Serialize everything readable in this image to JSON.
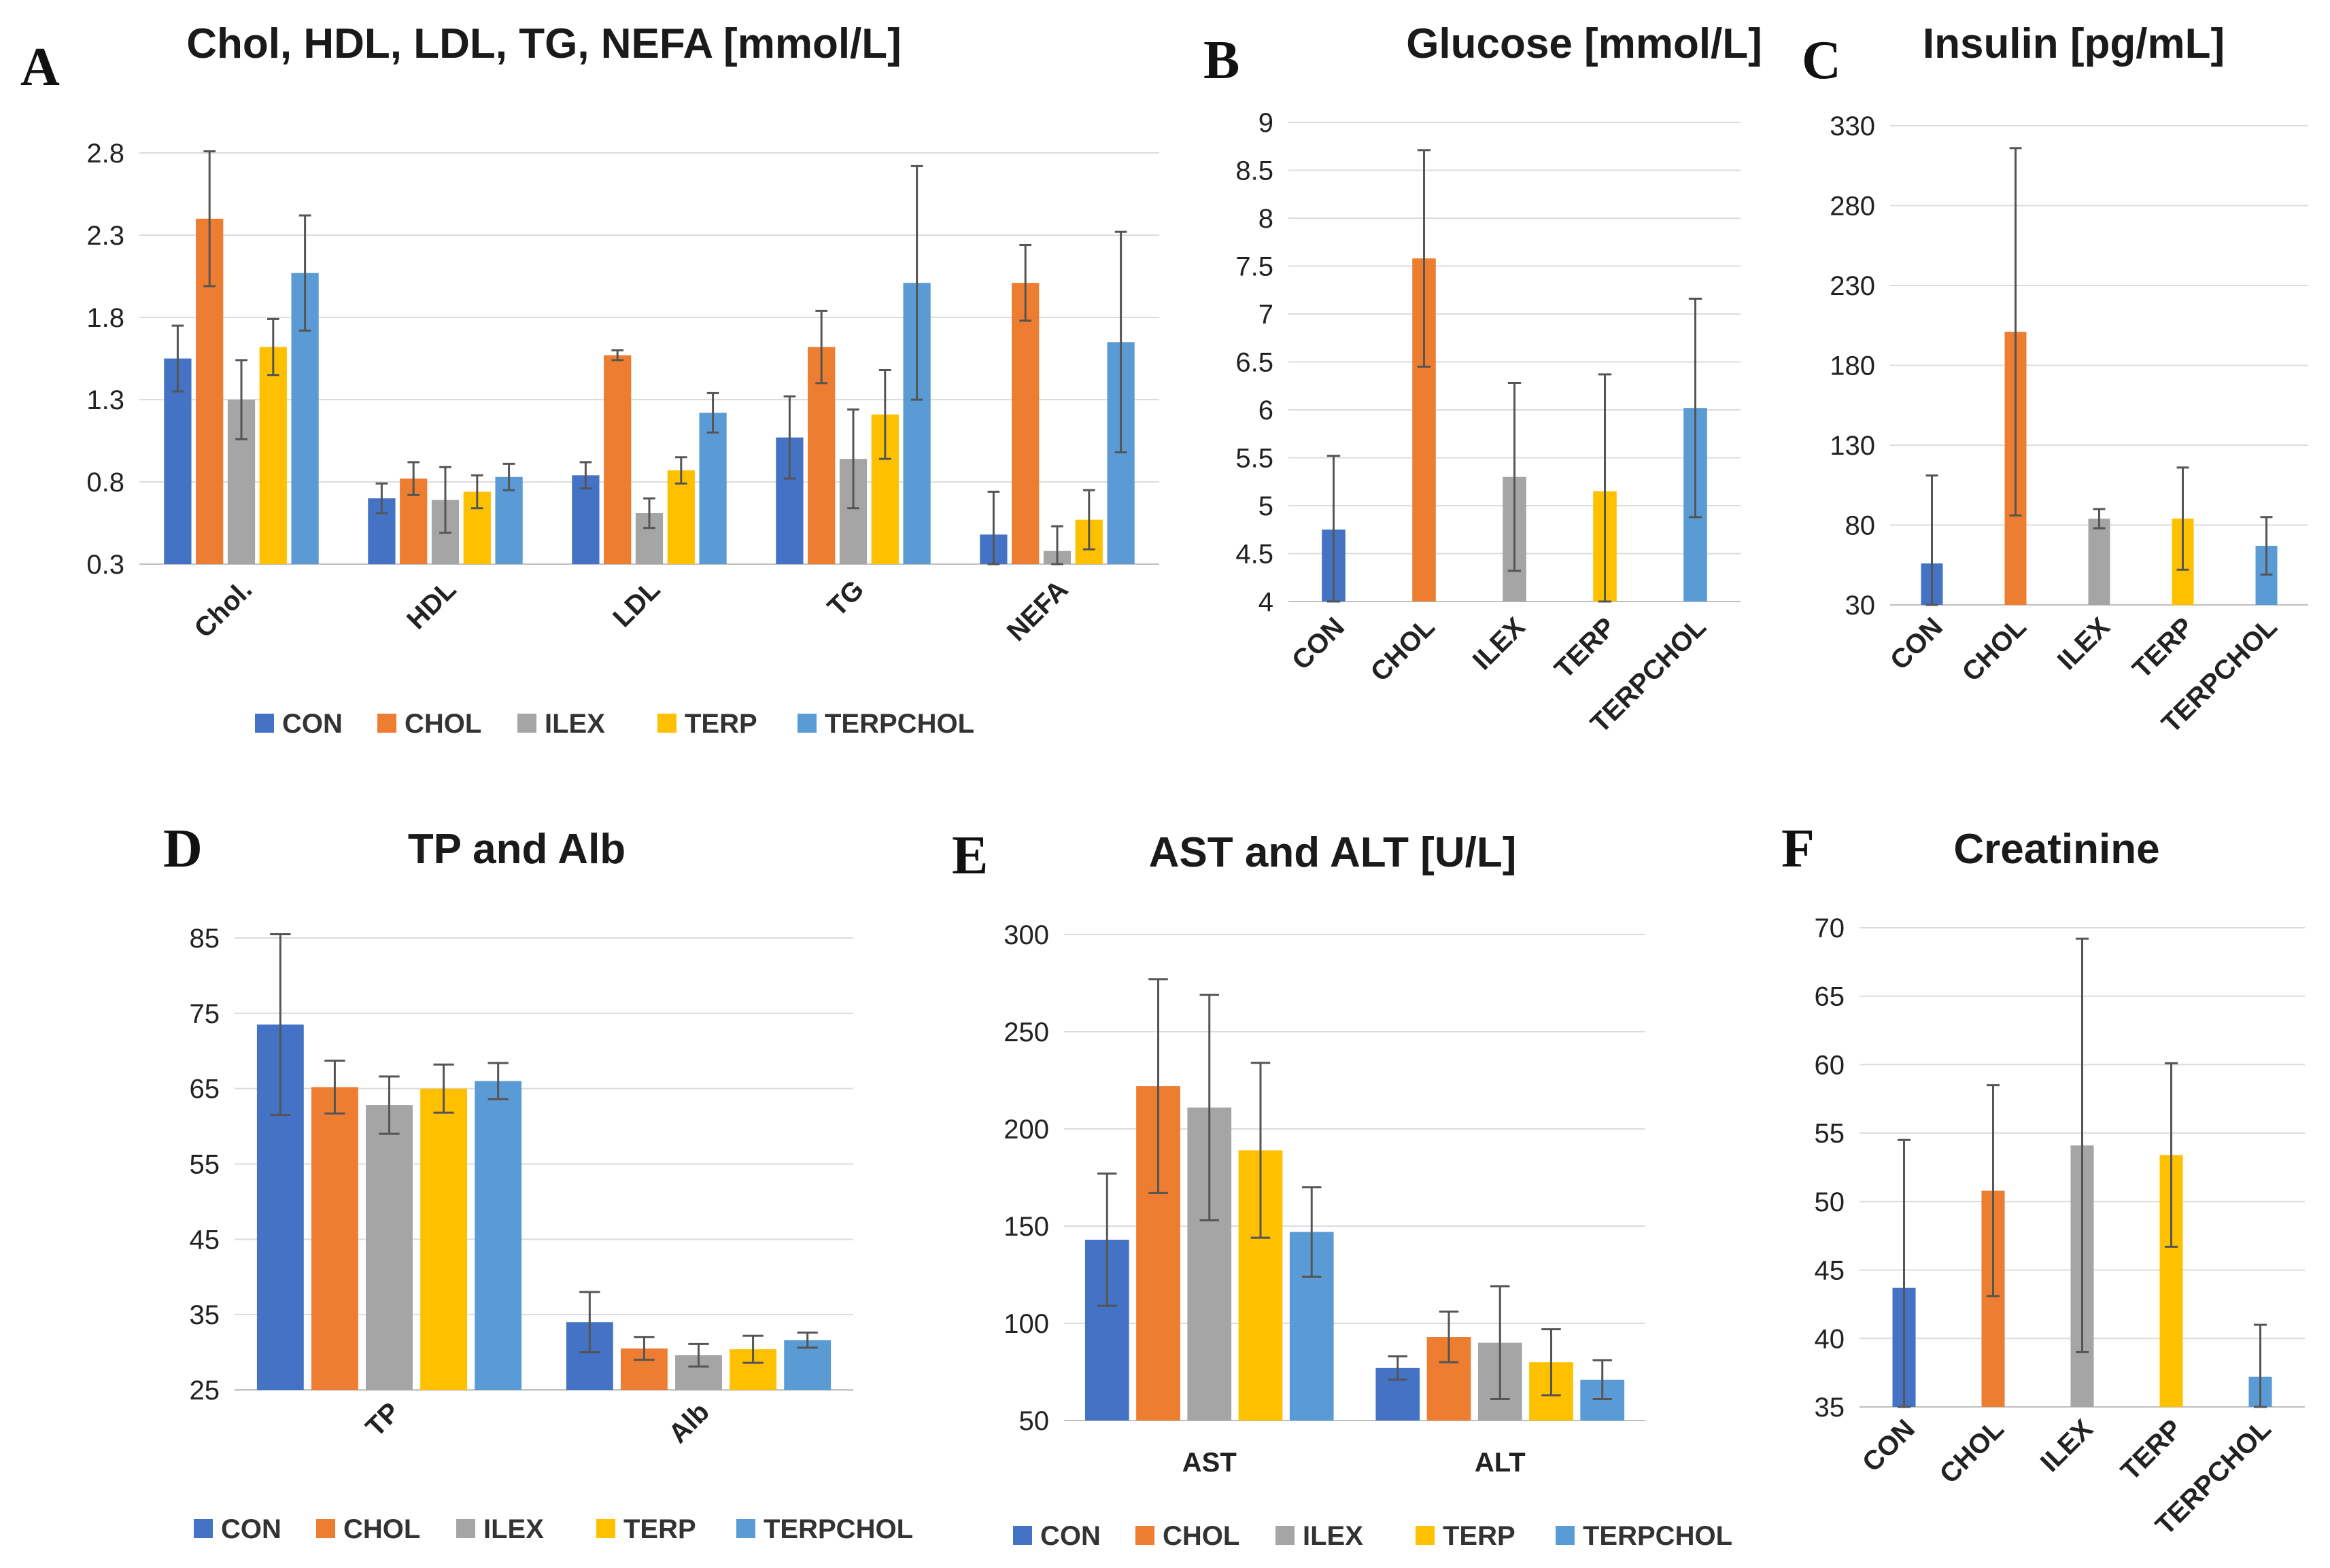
{
  "colors": {
    "CON": "#4472C4",
    "CHOL": "#ED7D31",
    "ILEX": "#A5A5A5",
    "TERP": "#FFC000",
    "TERPCHOL": "#5B9BD5"
  },
  "legend": [
    "CON",
    "CHOL",
    "ILEX",
    "TERP",
    "TERPCHOL"
  ],
  "chart_data": [
    {
      "panel": "A",
      "type": "bar",
      "title": "Chol, HDL, LDL, TG, NEFA [mmol/L]",
      "categories": [
        "Chol.",
        "HDL",
        "LDL",
        "TG",
        "NEFA"
      ],
      "ylim": [
        0.3,
        2.8
      ],
      "yticks": [
        "2.8",
        "2.3",
        "1.8",
        "1.3",
        "0.8",
        "0.3"
      ],
      "series": [
        {
          "name": "CON",
          "values": [
            1.55,
            0.7,
            0.84,
            1.07,
            0.48
          ],
          "errors": [
            0.2,
            0.09,
            0.08,
            0.25,
            0.26
          ]
        },
        {
          "name": "CHOL",
          "values": [
            2.4,
            0.82,
            1.57,
            1.62,
            2.01
          ],
          "errors": [
            0.41,
            0.1,
            0.03,
            0.22,
            0.23
          ]
        },
        {
          "name": "ILEX",
          "values": [
            1.3,
            0.69,
            0.61,
            0.94,
            0.38
          ],
          "errors": [
            0.24,
            0.2,
            0.09,
            0.3,
            0.15
          ]
        },
        {
          "name": "TERP",
          "values": [
            1.62,
            0.74,
            0.87,
            1.21,
            0.57
          ],
          "errors": [
            0.17,
            0.1,
            0.08,
            0.27,
            0.18
          ]
        },
        {
          "name": "TERPCHOL",
          "values": [
            2.07,
            0.83,
            1.22,
            2.01,
            1.65
          ],
          "errors": [
            0.35,
            0.08,
            0.12,
            0.71,
            0.67
          ]
        }
      ]
    },
    {
      "panel": "B",
      "type": "bar",
      "title": "Glucose [mmol/L]",
      "categories": [
        "CON",
        "CHOL",
        "ILEX",
        "TERP",
        "TERPCHOL"
      ],
      "ylim": [
        4,
        9
      ],
      "yticks": [
        "9",
        "8.5",
        "8",
        "7.5",
        "7",
        "6.5",
        "6",
        "5.5",
        "5",
        "4.5",
        "4"
      ],
      "values": [
        4.75,
        7.58,
        5.3,
        5.15,
        6.02
      ],
      "errors": [
        0.77,
        1.13,
        0.98,
        1.22,
        1.14
      ]
    },
    {
      "panel": "C",
      "type": "bar",
      "title": "Insulin [pg/mL]",
      "categories": [
        "CON",
        "CHOL",
        "ILEX",
        "TERP",
        "TERPCHOL"
      ],
      "ylim": [
        30,
        330
      ],
      "yticks": [
        "330",
        "280",
        "230",
        "180",
        "130",
        "80",
        "30"
      ],
      "values": [
        56,
        201,
        84,
        84,
        67
      ],
      "errors": [
        55,
        115,
        6,
        32,
        18
      ]
    },
    {
      "panel": "D",
      "type": "bar",
      "title": "TP and Alb",
      "categories": [
        "TP",
        "Alb"
      ],
      "ylim": [
        25,
        85
      ],
      "yticks": [
        "85",
        "75",
        "65",
        "55",
        "45",
        "35",
        "25"
      ],
      "series": [
        {
          "name": "CON",
          "values": [
            73.5,
            34.0
          ],
          "errors": [
            12.0,
            4.0
          ]
        },
        {
          "name": "CHOL",
          "values": [
            65.2,
            30.5
          ],
          "errors": [
            3.5,
            1.5
          ]
        },
        {
          "name": "ILEX",
          "values": [
            62.8,
            29.6
          ],
          "errors": [
            3.8,
            1.5
          ]
        },
        {
          "name": "TERP",
          "values": [
            65.0,
            30.4
          ],
          "errors": [
            3.2,
            1.8
          ]
        },
        {
          "name": "TERPCHOL",
          "values": [
            66.0,
            31.6
          ],
          "errors": [
            2.4,
            1.0
          ]
        }
      ]
    },
    {
      "panel": "E",
      "type": "bar",
      "title": "AST and ALT [U/L]",
      "categories": [
        "AST",
        "ALT"
      ],
      "ylim": [
        50,
        300
      ],
      "yticks": [
        "300",
        "250",
        "200",
        "150",
        "100",
        "50"
      ],
      "series": [
        {
          "name": "CON",
          "values": [
            143,
            77
          ],
          "errors": [
            34,
            6
          ]
        },
        {
          "name": "CHOL",
          "values": [
            222,
            93
          ],
          "errors": [
            55,
            13
          ]
        },
        {
          "name": "ILEX",
          "values": [
            211,
            90
          ],
          "errors": [
            58,
            29
          ]
        },
        {
          "name": "TERP",
          "values": [
            189,
            80
          ],
          "errors": [
            45,
            17
          ]
        },
        {
          "name": "TERPCHOL",
          "values": [
            147,
            71
          ],
          "errors": [
            23,
            10
          ]
        }
      ]
    },
    {
      "panel": "F",
      "type": "bar",
      "title": "Creatinine",
      "categories": [
        "CON",
        "CHOL",
        "ILEX",
        "TERP",
        "TERPCHOL"
      ],
      "ylim": [
        35,
        70
      ],
      "yticks": [
        "70",
        "65",
        "60",
        "55",
        "50",
        "45",
        "40",
        "35"
      ],
      "values": [
        43.7,
        50.8,
        54.1,
        53.4,
        37.2
      ],
      "errors": [
        10.8,
        7.7,
        15.1,
        6.7,
        3.8
      ]
    }
  ]
}
